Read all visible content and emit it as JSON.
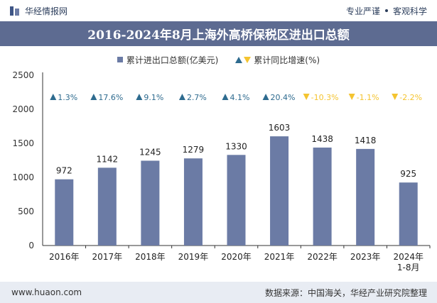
{
  "header": {
    "brand": "华经情报网",
    "tag_left": "专业严谨",
    "tag_right": "客观科学"
  },
  "title": "2016-2024年8月上海外高桥保税区进出口总额",
  "legend": {
    "bar_label": "累计进出口总额(亿美元)",
    "growth_label": "累计同比增速(%)"
  },
  "footer": {
    "website": "www.huaon.com",
    "source": "数据来源：中国海关，华经产业研究院整理"
  },
  "colors": {
    "bar": "#6b7ba5",
    "title_bg": "#5d6b91",
    "up": "#2e6b8f",
    "down": "#f4c430",
    "footer_bg": "#e8ecf3"
  },
  "chart_data": {
    "type": "bar",
    "categories": [
      "2016年",
      "2017年",
      "2018年",
      "2019年",
      "2020年",
      "2021年",
      "2022年",
      "2023年",
      "2024年\n1-8月"
    ],
    "series": [
      {
        "name": "累计进出口总额(亿美元)",
        "values": [
          972,
          1142,
          1245,
          1279,
          1330,
          1603,
          1438,
          1418,
          925
        ]
      }
    ],
    "growth": [
      {
        "name": "累计同比增速(%)",
        "values": [
          "1.3%",
          "17.6%",
          "9.1%",
          "2.7%",
          "4.1%",
          "20.4%",
          "-10.3%",
          "-1.1%",
          "-2.2%"
        ],
        "direction": [
          "up",
          "up",
          "up",
          "up",
          "up",
          "up",
          "down",
          "down",
          "down"
        ]
      }
    ],
    "yticks": [
      0,
      500,
      1000,
      1500,
      2000,
      2500
    ],
    "ylim": [
      0,
      2500
    ],
    "grid": false
  }
}
